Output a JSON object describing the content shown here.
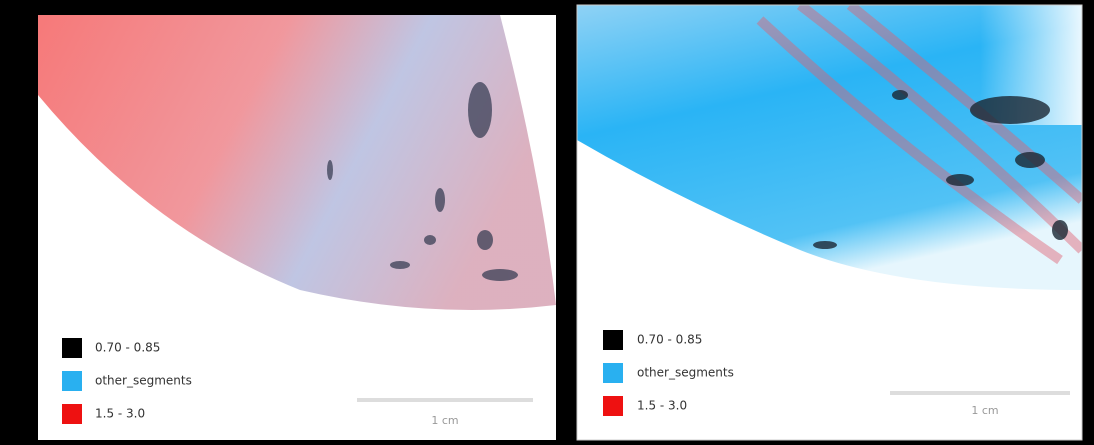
{
  "panels": [
    {
      "legend": [
        {
          "label": "0.70 - 0.85",
          "color": "#000000"
        },
        {
          "label": "other_segments",
          "color": "#29b0f0"
        },
        {
          "label": "1.5 - 3.0",
          "color": "#ee1111"
        }
      ],
      "scale_bar": "1 cm"
    },
    {
      "legend": [
        {
          "label": "0.70 - 0.85",
          "color": "#000000"
        },
        {
          "label": "other_segments",
          "color": "#29b0f0"
        },
        {
          "label": "1.5 - 3.0",
          "color": "#ee1111"
        }
      ],
      "scale_bar": "1 cm"
    }
  ]
}
